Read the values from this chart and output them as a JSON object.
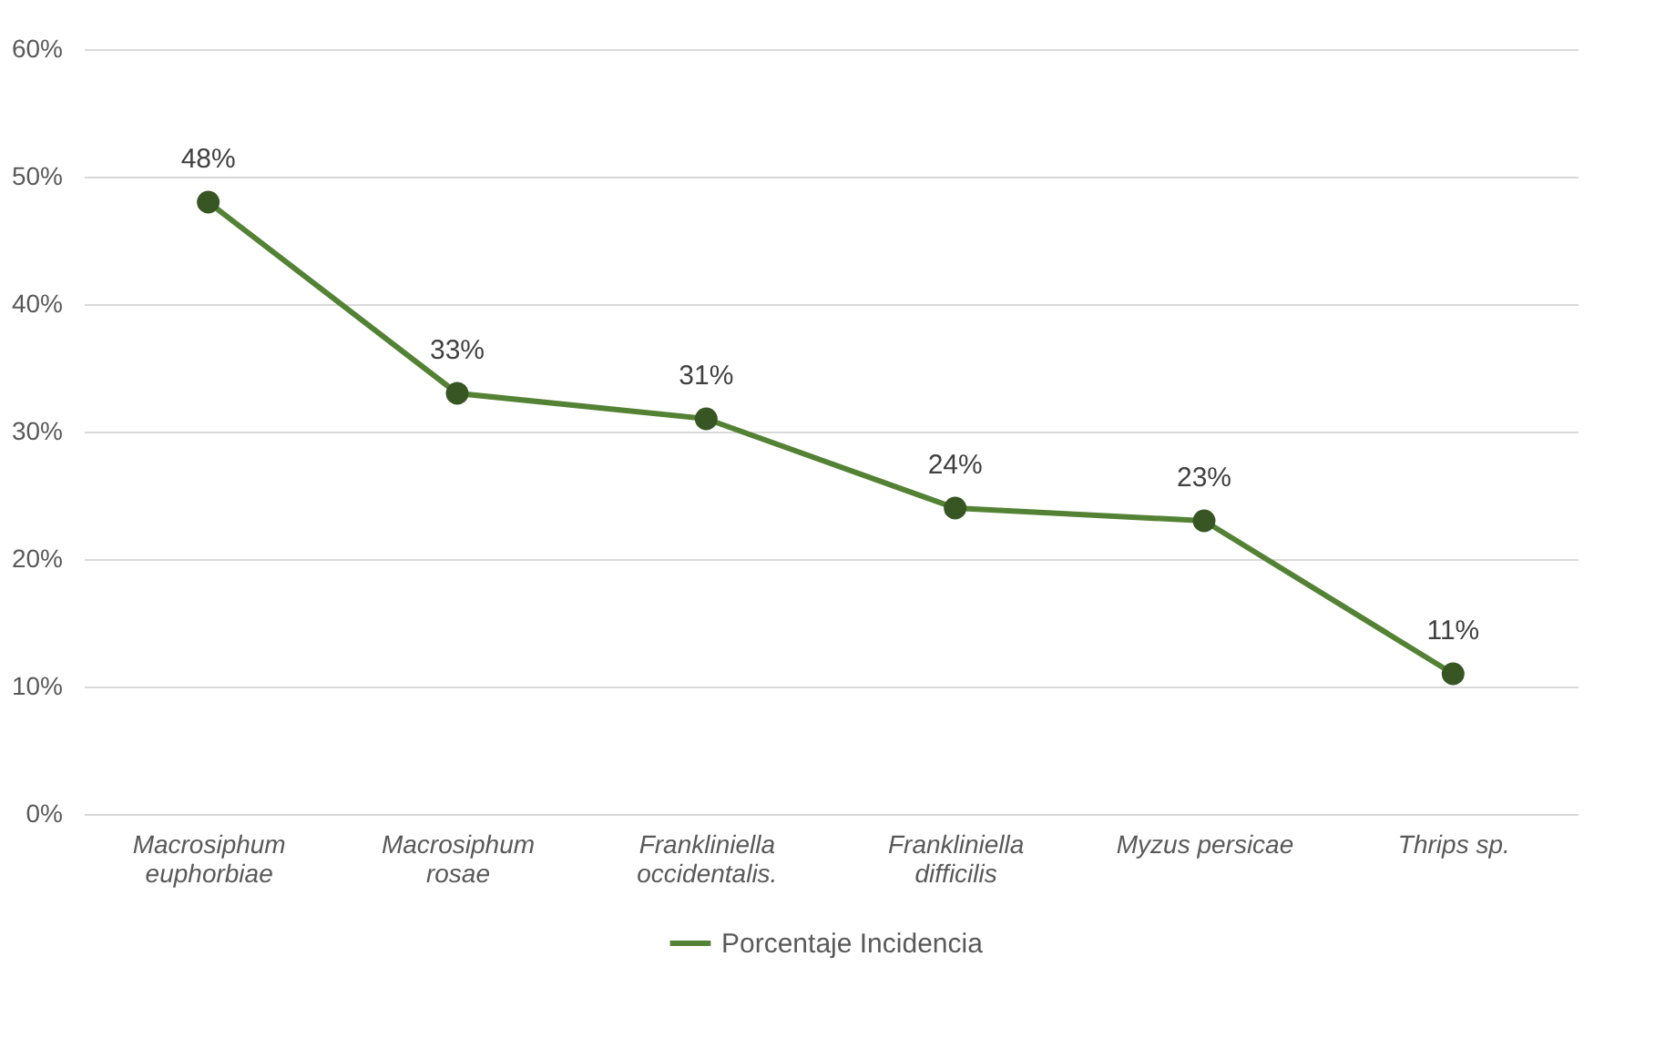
{
  "chart_data": {
    "type": "line",
    "categories": [
      "Macrosiphum euphorbiae",
      "Macrosiphum rosae",
      "Frankliniella occidentalis.",
      "Frankliniella difficilis",
      "Myzus persicae",
      "Thrips sp."
    ],
    "series": [
      {
        "name": "Porcentaje Incidencia",
        "color": "#548235",
        "values": [
          48,
          33,
          31,
          24,
          23,
          11
        ],
        "value_labels": [
          "48%",
          "33%",
          "31%",
          "24%",
          "23%",
          "11%"
        ]
      }
    ],
    "ylim": [
      0,
      60
    ],
    "yticks": [
      {
        "value": 0,
        "label": "0%"
      },
      {
        "value": 10,
        "label": "10%"
      },
      {
        "value": 20,
        "label": "20%"
      },
      {
        "value": 30,
        "label": "30%"
      },
      {
        "value": 40,
        "label": "40%"
      },
      {
        "value": 50,
        "label": "50%"
      },
      {
        "value": 60,
        "label": "60%"
      }
    ],
    "grid": "y",
    "legend": "bottom",
    "marker": "circle",
    "line_style": "solid"
  }
}
